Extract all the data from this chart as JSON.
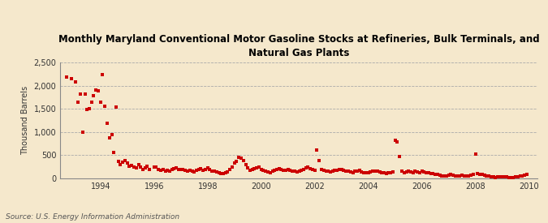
{
  "title": "Monthly Maryland Conventional Motor Gasoline Stocks at Refineries, Bulk Terminals, and\nNatural Gas Plants",
  "ylabel": "Thousand Barrels",
  "source": "Source: U.S. Energy Information Administration",
  "background_color": "#f5e8cc",
  "plot_bg_color": "#f5e8cc",
  "dot_color": "#cc0000",
  "xlim": [
    1992.5,
    2010.3
  ],
  "ylim": [
    0,
    2500
  ],
  "yticks": [
    0,
    500,
    1000,
    1500,
    2000,
    2500
  ],
  "ytick_labels": [
    "0",
    "500",
    "1,000",
    "1,500",
    "2,000",
    "2,500"
  ],
  "xticks": [
    1994,
    1996,
    1998,
    2000,
    2002,
    2004,
    2006,
    2008,
    2010
  ],
  "data": [
    [
      1992.75,
      2180
    ],
    [
      1992.92,
      2150
    ],
    [
      1993.08,
      2080
    ],
    [
      1993.17,
      1640
    ],
    [
      1993.25,
      1820
    ],
    [
      1993.33,
      1000
    ],
    [
      1993.42,
      1810
    ],
    [
      1993.5,
      1490
    ],
    [
      1993.58,
      1500
    ],
    [
      1993.67,
      1650
    ],
    [
      1993.75,
      1780
    ],
    [
      1993.83,
      1900
    ],
    [
      1993.92,
      1890
    ],
    [
      1994.0,
      1650
    ],
    [
      1994.08,
      2240
    ],
    [
      1994.17,
      1560
    ],
    [
      1994.25,
      1190
    ],
    [
      1994.33,
      880
    ],
    [
      1994.42,
      950
    ],
    [
      1994.5,
      560
    ],
    [
      1994.58,
      1530
    ],
    [
      1994.67,
      360
    ],
    [
      1994.75,
      300
    ],
    [
      1994.83,
      350
    ],
    [
      1994.92,
      380
    ],
    [
      1995.0,
      340
    ],
    [
      1995.08,
      270
    ],
    [
      1995.17,
      280
    ],
    [
      1995.25,
      250
    ],
    [
      1995.33,
      230
    ],
    [
      1995.42,
      290
    ],
    [
      1995.5,
      240
    ],
    [
      1995.58,
      200
    ],
    [
      1995.67,
      220
    ],
    [
      1995.75,
      260
    ],
    [
      1995.83,
      190
    ],
    [
      1996.0,
      250
    ],
    [
      1996.08,
      240
    ],
    [
      1996.17,
      200
    ],
    [
      1996.25,
      170
    ],
    [
      1996.33,
      200
    ],
    [
      1996.42,
      160
    ],
    [
      1996.5,
      180
    ],
    [
      1996.58,
      150
    ],
    [
      1996.67,
      190
    ],
    [
      1996.75,
      210
    ],
    [
      1996.83,
      230
    ],
    [
      1996.92,
      200
    ],
    [
      1997.0,
      190
    ],
    [
      1997.08,
      200
    ],
    [
      1997.17,
      180
    ],
    [
      1997.25,
      160
    ],
    [
      1997.33,
      170
    ],
    [
      1997.42,
      150
    ],
    [
      1997.5,
      140
    ],
    [
      1997.58,
      170
    ],
    [
      1997.67,
      190
    ],
    [
      1997.75,
      210
    ],
    [
      1997.83,
      180
    ],
    [
      1997.92,
      200
    ],
    [
      1998.0,
      220
    ],
    [
      1998.08,
      190
    ],
    [
      1998.17,
      160
    ],
    [
      1998.25,
      150
    ],
    [
      1998.33,
      140
    ],
    [
      1998.42,
      130
    ],
    [
      1998.5,
      110
    ],
    [
      1998.58,
      100
    ],
    [
      1998.67,
      120
    ],
    [
      1998.75,
      140
    ],
    [
      1998.83,
      190
    ],
    [
      1998.92,
      250
    ],
    [
      1999.0,
      330
    ],
    [
      1999.08,
      370
    ],
    [
      1999.17,
      450
    ],
    [
      1999.25,
      430
    ],
    [
      1999.33,
      380
    ],
    [
      1999.42,
      300
    ],
    [
      1999.5,
      220
    ],
    [
      1999.58,
      180
    ],
    [
      1999.67,
      200
    ],
    [
      1999.75,
      210
    ],
    [
      1999.83,
      230
    ],
    [
      1999.92,
      240
    ],
    [
      2000.0,
      200
    ],
    [
      2000.08,
      180
    ],
    [
      2000.17,
      160
    ],
    [
      2000.25,
      140
    ],
    [
      2000.33,
      130
    ],
    [
      2000.42,
      150
    ],
    [
      2000.5,
      170
    ],
    [
      2000.58,
      200
    ],
    [
      2000.67,
      210
    ],
    [
      2000.75,
      190
    ],
    [
      2000.83,
      180
    ],
    [
      2000.92,
      170
    ],
    [
      2001.0,
      200
    ],
    [
      2001.08,
      180
    ],
    [
      2001.17,
      160
    ],
    [
      2001.25,
      150
    ],
    [
      2001.33,
      140
    ],
    [
      2001.42,
      160
    ],
    [
      2001.5,
      180
    ],
    [
      2001.58,
      200
    ],
    [
      2001.67,
      220
    ],
    [
      2001.75,
      240
    ],
    [
      2001.83,
      210
    ],
    [
      2001.92,
      190
    ],
    [
      2002.0,
      180
    ],
    [
      2002.08,
      620
    ],
    [
      2002.17,
      390
    ],
    [
      2002.25,
      200
    ],
    [
      2002.33,
      170
    ],
    [
      2002.42,
      160
    ],
    [
      2002.5,
      150
    ],
    [
      2002.58,
      140
    ],
    [
      2002.67,
      160
    ],
    [
      2002.75,
      170
    ],
    [
      2002.83,
      180
    ],
    [
      2002.92,
      190
    ],
    [
      2003.0,
      200
    ],
    [
      2003.08,
      180
    ],
    [
      2003.17,
      160
    ],
    [
      2003.25,
      150
    ],
    [
      2003.33,
      140
    ],
    [
      2003.42,
      130
    ],
    [
      2003.5,
      150
    ],
    [
      2003.58,
      160
    ],
    [
      2003.67,
      170
    ],
    [
      2003.75,
      140
    ],
    [
      2003.83,
      130
    ],
    [
      2003.92,
      120
    ],
    [
      2004.0,
      130
    ],
    [
      2004.08,
      140
    ],
    [
      2004.17,
      150
    ],
    [
      2004.25,
      160
    ],
    [
      2004.33,
      150
    ],
    [
      2004.42,
      140
    ],
    [
      2004.5,
      130
    ],
    [
      2004.58,
      120
    ],
    [
      2004.67,
      110
    ],
    [
      2004.75,
      120
    ],
    [
      2004.83,
      130
    ],
    [
      2004.92,
      140
    ],
    [
      2005.0,
      820
    ],
    [
      2005.08,
      790
    ],
    [
      2005.17,
      480
    ],
    [
      2005.25,
      150
    ],
    [
      2005.33,
      130
    ],
    [
      2005.42,
      140
    ],
    [
      2005.5,
      150
    ],
    [
      2005.58,
      140
    ],
    [
      2005.67,
      130
    ],
    [
      2005.75,
      150
    ],
    [
      2005.83,
      140
    ],
    [
      2005.92,
      130
    ],
    [
      2006.0,
      150
    ],
    [
      2006.08,
      140
    ],
    [
      2006.17,
      130
    ],
    [
      2006.25,
      120
    ],
    [
      2006.33,
      110
    ],
    [
      2006.42,
      100
    ],
    [
      2006.5,
      90
    ],
    [
      2006.58,
      80
    ],
    [
      2006.67,
      70
    ],
    [
      2006.75,
      60
    ],
    [
      2006.83,
      50
    ],
    [
      2006.92,
      60
    ],
    [
      2007.0,
      70
    ],
    [
      2007.08,
      80
    ],
    [
      2007.17,
      70
    ],
    [
      2007.25,
      60
    ],
    [
      2007.33,
      50
    ],
    [
      2007.42,
      60
    ],
    [
      2007.5,
      70
    ],
    [
      2007.58,
      60
    ],
    [
      2007.67,
      50
    ],
    [
      2007.75,
      60
    ],
    [
      2007.83,
      70
    ],
    [
      2007.92,
      80
    ],
    [
      2008.0,
      530
    ],
    [
      2008.08,
      100
    ],
    [
      2008.17,
      90
    ],
    [
      2008.25,
      80
    ],
    [
      2008.33,
      70
    ],
    [
      2008.42,
      60
    ],
    [
      2008.5,
      50
    ],
    [
      2008.58,
      40
    ],
    [
      2008.67,
      30
    ],
    [
      2008.75,
      20
    ],
    [
      2008.83,
      30
    ],
    [
      2008.92,
      40
    ],
    [
      2009.0,
      30
    ],
    [
      2009.08,
      40
    ],
    [
      2009.17,
      30
    ],
    [
      2009.25,
      20
    ],
    [
      2009.33,
      10
    ],
    [
      2009.42,
      20
    ],
    [
      2009.5,
      30
    ],
    [
      2009.58,
      40
    ],
    [
      2009.67,
      50
    ],
    [
      2009.75,
      60
    ],
    [
      2009.83,
      70
    ],
    [
      2009.92,
      80
    ]
  ]
}
